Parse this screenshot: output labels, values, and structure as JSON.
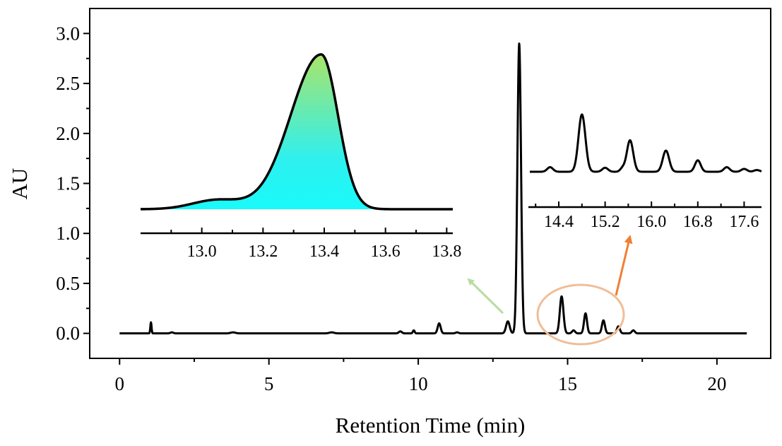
{
  "chart_data": {
    "type": "line",
    "xlabel": "Retention Time (min)",
    "ylabel": "AU",
    "xlim": [
      -1.0,
      21.8
    ],
    "ylim": [
      -0.25,
      3.25
    ],
    "x_ticks": [
      {
        "value": 0,
        "label": "0"
      },
      {
        "value": 5,
        "label": "5"
      },
      {
        "value": 10,
        "label": "10"
      },
      {
        "value": 15,
        "label": "15"
      },
      {
        "value": 20,
        "label": "20"
      }
    ],
    "y_ticks": [
      {
        "value": 0.0,
        "label": "0.0"
      },
      {
        "value": 0.5,
        "label": "0.5"
      },
      {
        "value": 1.0,
        "label": "1.0"
      },
      {
        "value": 1.5,
        "label": "1.5"
      },
      {
        "value": 2.0,
        "label": "2.0"
      },
      {
        "value": 2.5,
        "label": "2.5"
      },
      {
        "value": 3.0,
        "label": "3.0"
      }
    ],
    "series": [
      {
        "name": "chromatogram",
        "baseline": 0.0,
        "x_range": [
          0,
          21
        ],
        "peaks": [
          {
            "x": 1.05,
            "height": 0.11,
            "width": 0.02
          },
          {
            "x": 1.75,
            "height": 0.01,
            "width": 0.05
          },
          {
            "x": 3.8,
            "height": 0.01,
            "width": 0.08
          },
          {
            "x": 7.1,
            "height": 0.01,
            "width": 0.08
          },
          {
            "x": 9.4,
            "height": 0.02,
            "width": 0.05
          },
          {
            "x": 9.85,
            "height": 0.03,
            "width": 0.03
          },
          {
            "x": 10.7,
            "height": 0.1,
            "width": 0.05
          },
          {
            "x": 11.3,
            "height": 0.01,
            "width": 0.05
          },
          {
            "x": 13.0,
            "height": 0.12,
            "width": 0.06
          },
          {
            "x": 13.38,
            "height": 2.9,
            "width": 0.06
          },
          {
            "x": 14.8,
            "height": 0.37,
            "width": 0.06
          },
          {
            "x": 15.2,
            "height": 0.03,
            "width": 0.05
          },
          {
            "x": 15.6,
            "height": 0.2,
            "width": 0.05
          },
          {
            "x": 16.2,
            "height": 0.13,
            "width": 0.05
          },
          {
            "x": 16.7,
            "height": 0.07,
            "width": 0.05
          },
          {
            "x": 17.2,
            "height": 0.03,
            "width": 0.05
          }
        ]
      }
    ],
    "insets": [
      {
        "name": "main-peak-zoom",
        "type": "area",
        "xlim": [
          12.8,
          13.82
        ],
        "x_ticks": [
          {
            "value": 13.0,
            "label": "13.0"
          },
          {
            "value": 13.2,
            "label": "13.2"
          },
          {
            "value": 13.4,
            "label": "13.4"
          },
          {
            "value": 13.6,
            "label": "13.6"
          },
          {
            "value": 13.8,
            "label": "13.8"
          }
        ],
        "peaks": [
          {
            "x": 13.05,
            "height": 0.06,
            "width": 0.08
          },
          {
            "x": 13.39,
            "height": 1.0,
            "width_left": 0.1,
            "width_right": 0.055
          }
        ],
        "fill_colors": [
          "#a9e46a",
          "#2ef0ef",
          "#19fafa"
        ]
      },
      {
        "name": "minor-peaks-zoom",
        "type": "line",
        "xlim": [
          13.9,
          17.9
        ],
        "x_ticks": [
          {
            "value": 14.4,
            "label": "14.4"
          },
          {
            "value": 15.2,
            "label": "15.2"
          },
          {
            "value": 16.0,
            "label": "16.0"
          },
          {
            "value": 16.8,
            "label": "16.8"
          },
          {
            "value": 17.6,
            "label": "17.6"
          }
        ],
        "peaks": [
          {
            "x": 14.25,
            "height": 0.08,
            "width": 0.05
          },
          {
            "x": 14.8,
            "height": 1.0,
            "width": 0.06
          },
          {
            "x": 15.2,
            "height": 0.07,
            "width": 0.05
          },
          {
            "x": 15.5,
            "height": 0.06,
            "width": 0.04
          },
          {
            "x": 15.63,
            "height": 0.55,
            "width": 0.055
          },
          {
            "x": 16.25,
            "height": 0.37,
            "width": 0.055
          },
          {
            "x": 16.8,
            "height": 0.2,
            "width": 0.05
          },
          {
            "x": 17.3,
            "height": 0.08,
            "width": 0.05
          },
          {
            "x": 17.6,
            "height": 0.05,
            "width": 0.05
          },
          {
            "x": 17.82,
            "height": 0.03,
            "width": 0.05
          }
        ]
      }
    ],
    "annotations": [
      {
        "name": "green-arrow",
        "color": "#b9dca3",
        "points_to": "main-peak-zoom"
      },
      {
        "name": "orange-arrow",
        "color": "#ee8035",
        "points_to": "minor-peaks-zoom"
      },
      {
        "name": "highlight-ellipse",
        "color": "#f1bd96",
        "encloses": "minor peaks 14.5–17 min"
      }
    ]
  }
}
